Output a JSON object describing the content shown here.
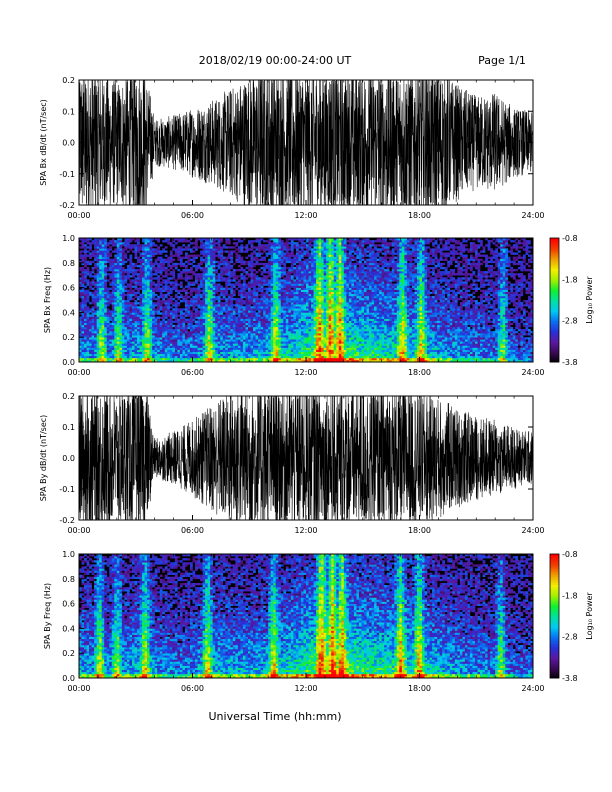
{
  "header": {
    "title": "2018/02/19  00:00-24:00 UT",
    "page": "Page 1/1"
  },
  "xaxis_label": "Universal Time (hh:mm)",
  "colors": {
    "background": "#ffffff",
    "waveform": "#000000",
    "spectrogram_background": "#000000"
  },
  "colorbar": {
    "label": "Log₁₀ Power",
    "ticks": [
      "-0.8",
      "-1.8",
      "-2.8",
      "-3.8"
    ],
    "range": [
      -3.8,
      -0.8
    ],
    "colors": [
      "#000000",
      "#3a0a55",
      "#5a18a0",
      "#2830d8",
      "#0a70f0",
      "#00c8f0",
      "#00e0a0",
      "#10f030",
      "#a0f000",
      "#f0f000",
      "#f0a000",
      "#f04000",
      "#ff0000"
    ]
  },
  "chart_data": [
    {
      "type": "line",
      "title": "",
      "xlabel": "",
      "ylabel": "SPA Bx dB/dt (nT/sec)",
      "xlim": [
        "00:00",
        "24:00"
      ],
      "xticks": [
        "00:00",
        "06:00",
        "12:00",
        "18:00",
        "24:00"
      ],
      "ylim": [
        -0.2,
        0.2
      ],
      "yticks": [
        "0.2",
        "0.1",
        "0.0",
        "-0.1",
        "-0.2"
      ],
      "series": [
        {
          "x_hours": [
            0,
            1,
            2,
            3,
            3.5,
            4,
            5,
            6,
            7,
            8,
            9,
            10,
            11,
            12,
            13,
            14,
            15,
            16,
            17,
            18,
            19,
            20,
            21,
            22,
            23,
            24
          ],
          "envelope": [
            0.2,
            0.2,
            0.16,
            0.2,
            0.2,
            0.06,
            0.07,
            0.09,
            0.11,
            0.14,
            0.18,
            0.2,
            0.2,
            0.2,
            0.2,
            0.2,
            0.2,
            0.2,
            0.2,
            0.2,
            0.2,
            0.15,
            0.12,
            0.13,
            0.09,
            0.08
          ]
        }
      ]
    },
    {
      "type": "heatmap",
      "title": "",
      "xlabel": "",
      "ylabel": "SPA Bx Freq (Hz)",
      "xlim": [
        "00:00",
        "24:00"
      ],
      "xticks": [
        "00:00",
        "06:00",
        "12:00",
        "18:00",
        "24:00"
      ],
      "ylim": [
        0.0,
        1.0
      ],
      "yticks": [
        "1.0",
        "0.8",
        "0.6",
        "0.4",
        "0.2",
        "0.0"
      ],
      "zlim": [
        -3.8,
        -0.8
      ],
      "activity_hours": [
        0,
        1,
        2,
        3,
        4,
        5,
        6,
        7,
        8,
        9,
        10,
        11,
        12,
        13,
        14,
        15,
        16,
        17,
        18,
        19,
        20,
        21,
        22,
        23,
        24
      ],
      "activity_level": [
        0.55,
        0.5,
        0.45,
        0.6,
        0.5,
        0.42,
        0.45,
        0.6,
        0.55,
        0.55,
        0.6,
        0.68,
        0.85,
        0.95,
        0.88,
        0.8,
        0.78,
        0.72,
        0.7,
        0.6,
        0.5,
        0.45,
        0.4,
        0.35,
        0.3
      ],
      "bright_bursts_hours": [
        1.2,
        2.1,
        3.6,
        6.9,
        10.4,
        12.7,
        13.3,
        13.8,
        17.1,
        18.1,
        22.4
      ]
    },
    {
      "type": "line",
      "title": "",
      "xlabel": "",
      "ylabel": "SPA By dB/dt (nT/sec)",
      "xlim": [
        "00:00",
        "24:00"
      ],
      "xticks": [
        "00:00",
        "06:00",
        "12:00",
        "18:00",
        "24:00"
      ],
      "ylim": [
        -0.2,
        0.2
      ],
      "yticks": [
        "0.2",
        "0.1",
        "0.0",
        "-0.1",
        "-0.2"
      ],
      "series": [
        {
          "x_hours": [
            0,
            1,
            2,
            3,
            3.5,
            4,
            5,
            6,
            7,
            8,
            9,
            10,
            11,
            12,
            13,
            14,
            15,
            16,
            17,
            18,
            19,
            20,
            21,
            22,
            23,
            24
          ],
          "envelope": [
            0.2,
            0.2,
            0.18,
            0.2,
            0.2,
            0.05,
            0.07,
            0.1,
            0.14,
            0.18,
            0.2,
            0.2,
            0.2,
            0.2,
            0.2,
            0.2,
            0.2,
            0.2,
            0.2,
            0.18,
            0.16,
            0.13,
            0.11,
            0.1,
            0.08,
            0.07
          ]
        }
      ]
    },
    {
      "type": "heatmap",
      "title": "",
      "xlabel": "",
      "ylabel": "SPA By Freq (Hz)",
      "xlim": [
        "00:00",
        "24:00"
      ],
      "xticks": [
        "00:00",
        "06:00",
        "12:00",
        "18:00",
        "24:00"
      ],
      "ylim": [
        0.0,
        1.0
      ],
      "yticks": [
        "1.0",
        "0.8",
        "0.6",
        "0.4",
        "0.2",
        "0.0"
      ],
      "zlim": [
        -3.8,
        -0.8
      ],
      "activity_hours": [
        0,
        1,
        2,
        3,
        4,
        5,
        6,
        7,
        8,
        9,
        10,
        11,
        12,
        13,
        14,
        15,
        16,
        17,
        18,
        19,
        20,
        21,
        22,
        23,
        24
      ],
      "activity_level": [
        0.6,
        0.55,
        0.5,
        0.65,
        0.55,
        0.45,
        0.5,
        0.65,
        0.6,
        0.6,
        0.65,
        0.72,
        0.88,
        0.98,
        0.9,
        0.85,
        0.82,
        0.78,
        0.75,
        0.65,
        0.55,
        0.5,
        0.45,
        0.4,
        0.35
      ],
      "bright_bursts_hours": [
        1.1,
        2.0,
        3.5,
        6.8,
        10.3,
        12.8,
        13.4,
        13.9,
        17.0,
        18.0,
        22.3
      ]
    }
  ]
}
